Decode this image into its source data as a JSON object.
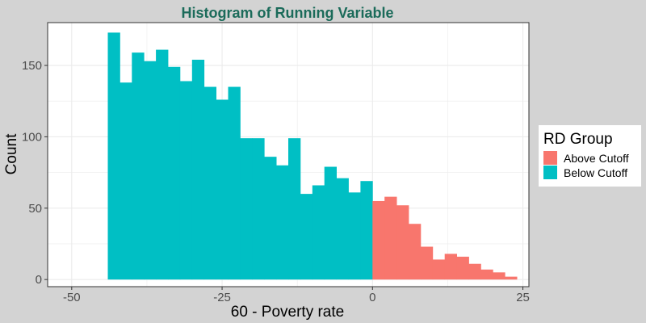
{
  "chart_data": {
    "type": "bar",
    "title": "Histogram of Running Variable",
    "xlabel": "60 - Poverty rate",
    "ylabel": "Count",
    "xlim": [
      -54,
      26
    ],
    "ylim": [
      -5,
      180
    ],
    "x_ticks": [
      -50,
      -25,
      0,
      25
    ],
    "x_tick_labels": [
      "-50",
      "-25",
      "0",
      "25"
    ],
    "y_ticks": [
      0,
      50,
      100,
      150
    ],
    "y_tick_labels": [
      "0",
      "50",
      "100",
      "150"
    ],
    "grid": true,
    "legend": {
      "title": "RD Group",
      "position": "right",
      "entries": [
        {
          "label": "Above Cutoff",
          "color": "#F8766D"
        },
        {
          "label": "Below Cutoff",
          "color": "#00BFC4"
        }
      ]
    },
    "bin_width": 2,
    "series": [
      {
        "name": "Below Cutoff",
        "color": "#00BFC4",
        "bin_starts": [
          -44,
          -42,
          -40,
          -38,
          -36,
          -34,
          -32,
          -30,
          -28,
          -26,
          -24,
          -22,
          -20,
          -18,
          -16,
          -14,
          -12,
          -10,
          -8,
          -6,
          -4,
          -2
        ],
        "values": [
          173,
          138,
          159,
          153,
          161,
          149,
          139,
          154,
          135,
          126,
          135,
          99,
          99,
          86,
          80,
          99,
          60,
          66,
          79,
          71,
          61,
          69
        ]
      },
      {
        "name": "Above Cutoff",
        "color": "#F8766D",
        "bin_starts": [
          0,
          2,
          4,
          6,
          8,
          10,
          12,
          14,
          16,
          18,
          20,
          22
        ],
        "values": [
          55,
          58,
          52,
          39,
          23,
          14,
          18,
          16,
          11,
          7,
          5,
          2
        ]
      }
    ]
  },
  "colors": {
    "title": "#1B6B5A",
    "panel_background": "#ffffff",
    "plot_background": "#d3d3d3",
    "grid": "#ebebeb"
  }
}
